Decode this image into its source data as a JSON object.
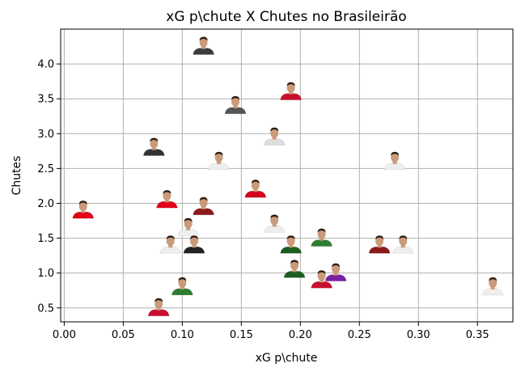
{
  "chart_data": {
    "type": "scatter",
    "title": "xG p\\chute X Chutes no Brasileirão",
    "xlabel": "xG p\\chute",
    "ylabel": "Chutes",
    "xlim": [
      -0.003,
      0.38
    ],
    "ylim": [
      0.3,
      4.5
    ],
    "xticks": [
      "0.00",
      "0.05",
      "0.10",
      "0.15",
      "0.20",
      "0.25",
      "0.30",
      "0.35"
    ],
    "yticks": [
      "0.5",
      "1.0",
      "1.5",
      "2.0",
      "2.5",
      "3.0",
      "3.5",
      "4.0"
    ],
    "grid": true,
    "marker": "player-photo",
    "points": [
      {
        "x": 0.118,
        "y": 4.25,
        "shirt": "#3c3c3c"
      },
      {
        "x": 0.192,
        "y": 3.6,
        "shirt": "#c8102e"
      },
      {
        "x": 0.145,
        "y": 3.4,
        "shirt": "#555555"
      },
      {
        "x": 0.178,
        "y": 2.95,
        "shirt": "#dddddd"
      },
      {
        "x": 0.076,
        "y": 2.8,
        "shirt": "#333333"
      },
      {
        "x": 0.131,
        "y": 2.6,
        "shirt": "#eeeeee"
      },
      {
        "x": 0.28,
        "y": 2.6,
        "shirt": "#eeeeee"
      },
      {
        "x": 0.162,
        "y": 2.2,
        "shirt": "#d4001e"
      },
      {
        "x": 0.087,
        "y": 2.05,
        "shirt": "#e3001b"
      },
      {
        "x": 0.118,
        "y": 1.95,
        "shirt": "#8b1a1a"
      },
      {
        "x": 0.016,
        "y": 1.9,
        "shirt": "#e3001b"
      },
      {
        "x": 0.105,
        "y": 1.65,
        "shirt": "#eeeeee"
      },
      {
        "x": 0.178,
        "y": 1.7,
        "shirt": "#eeeeee"
      },
      {
        "x": 0.218,
        "y": 1.5,
        "shirt": "#2e7d32"
      },
      {
        "x": 0.09,
        "y": 1.4,
        "shirt": "#eeeeee"
      },
      {
        "x": 0.11,
        "y": 1.4,
        "shirt": "#222222"
      },
      {
        "x": 0.192,
        "y": 1.4,
        "shirt": "#1b5e20"
      },
      {
        "x": 0.267,
        "y": 1.4,
        "shirt": "#8b1a1a"
      },
      {
        "x": 0.287,
        "y": 1.4,
        "shirt": "#eeeeee"
      },
      {
        "x": 0.195,
        "y": 1.05,
        "shirt": "#1b5e20"
      },
      {
        "x": 0.218,
        "y": 0.9,
        "shirt": "#c8102e"
      },
      {
        "x": 0.23,
        "y": 1.0,
        "shirt": "#7b1fa2"
      },
      {
        "x": 0.1,
        "y": 0.8,
        "shirt": "#2e7d32"
      },
      {
        "x": 0.363,
        "y": 0.8,
        "shirt": "#eeeeee"
      },
      {
        "x": 0.08,
        "y": 0.5,
        "shirt": "#c8102e"
      }
    ]
  }
}
